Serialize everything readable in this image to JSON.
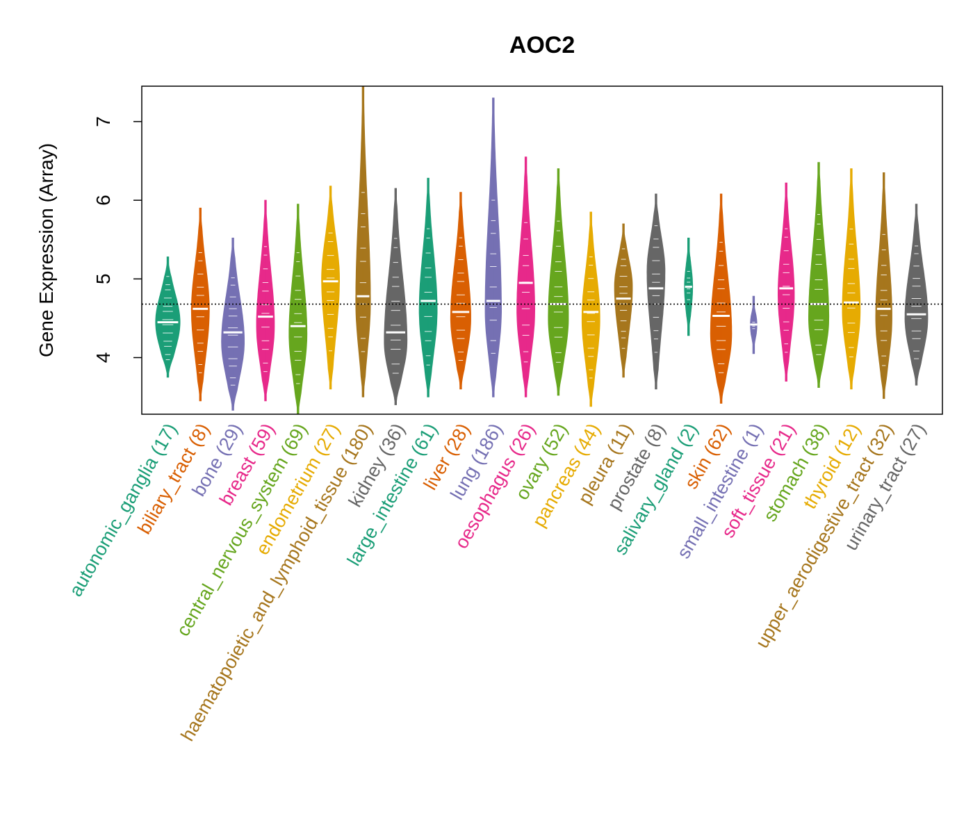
{
  "chart_data": {
    "type": "violin",
    "title": "AOC2",
    "xlabel": "",
    "ylabel": "Gene Expression (Array)",
    "ylim": [
      3.28,
      7.45
    ],
    "yticks": [
      4,
      5,
      6,
      7
    ],
    "reference_line": 4.68,
    "grid": false,
    "legend": "none",
    "categories": [
      {
        "label": "autonomic_ganglia (17)",
        "color": "#1B9E77",
        "median": 4.45,
        "min": 3.75,
        "max": 5.28,
        "mode": 4.45,
        "width": 0.75
      },
      {
        "label": "biliary_tract (8)",
        "color": "#D95F02",
        "median": 4.62,
        "min": 3.45,
        "max": 5.9,
        "mode": 4.6,
        "width": 0.55
      },
      {
        "label": "bone (29)",
        "color": "#7570B3",
        "median": 4.32,
        "min": 3.33,
        "max": 5.52,
        "mode": 4.2,
        "width": 0.7
      },
      {
        "label": "breast (59)",
        "color": "#E7298A",
        "median": 4.52,
        "min": 3.45,
        "max": 6.0,
        "mode": 4.4,
        "width": 0.55
      },
      {
        "label": "central_nervous_system (69)",
        "color": "#66A61E",
        "median": 4.4,
        "min": 3.28,
        "max": 5.95,
        "mode": 4.3,
        "width": 0.55
      },
      {
        "label": "endometrium (27)",
        "color": "#E6AB02",
        "median": 4.97,
        "min": 3.6,
        "max": 6.18,
        "mode": 5.0,
        "width": 0.55
      },
      {
        "label": "haematopoietic_and_lymphoid_tissue (180)",
        "color": "#A6761D",
        "median": 4.78,
        "min": 3.5,
        "max": 7.45,
        "mode": 4.7,
        "width": 0.45
      },
      {
        "label": "kidney (36)",
        "color": "#666666",
        "median": 4.32,
        "min": 3.4,
        "max": 6.15,
        "mode": 4.2,
        "width": 0.7
      },
      {
        "label": "large_intestine (61)",
        "color": "#1B9E77",
        "median": 4.72,
        "min": 3.5,
        "max": 6.28,
        "mode": 4.6,
        "width": 0.55
      },
      {
        "label": "liver (28)",
        "color": "#D95F02",
        "median": 4.58,
        "min": 3.6,
        "max": 6.1,
        "mode": 4.5,
        "width": 0.62
      },
      {
        "label": "lung (186)",
        "color": "#7570B3",
        "median": 4.72,
        "min": 3.5,
        "max": 7.3,
        "mode": 4.6,
        "width": 0.5
      },
      {
        "label": "oesophagus (26)",
        "color": "#E7298A",
        "median": 4.95,
        "min": 3.5,
        "max": 6.55,
        "mode": 4.6,
        "width": 0.55
      },
      {
        "label": "ovary (52)",
        "color": "#66A61E",
        "median": 4.68,
        "min": 3.52,
        "max": 6.4,
        "mode": 4.5,
        "width": 0.62
      },
      {
        "label": "pancreas (44)",
        "color": "#E6AB02",
        "median": 4.58,
        "min": 3.38,
        "max": 5.85,
        "mode": 4.5,
        "width": 0.55
      },
      {
        "label": "pleura (11)",
        "color": "#A6761D",
        "median": 4.75,
        "min": 3.75,
        "max": 5.7,
        "mode": 4.9,
        "width": 0.55
      },
      {
        "label": "prostate (8)",
        "color": "#666666",
        "median": 4.88,
        "min": 3.6,
        "max": 6.08,
        "mode": 5.1,
        "width": 0.55
      },
      {
        "label": "salivary_gland (2)",
        "color": "#1B9E77",
        "median": 4.9,
        "min": 4.28,
        "max": 5.52,
        "mode": 4.9,
        "width": 0.25
      },
      {
        "label": "skin (62)",
        "color": "#D95F02",
        "median": 4.53,
        "min": 3.42,
        "max": 6.08,
        "mode": 4.3,
        "width": 0.65
      },
      {
        "label": "small_intestine (1)",
        "color": "#7570B3",
        "median": 4.42,
        "min": 4.05,
        "max": 4.78,
        "mode": 4.42,
        "width": 0.2
      },
      {
        "label": "soft_tissue (21)",
        "color": "#E7298A",
        "median": 4.88,
        "min": 3.7,
        "max": 6.22,
        "mode": 4.8,
        "width": 0.5
      },
      {
        "label": "stomach (38)",
        "color": "#66A61E",
        "median": 4.68,
        "min": 3.62,
        "max": 6.48,
        "mode": 4.5,
        "width": 0.62
      },
      {
        "label": "thyroid (12)",
        "color": "#E6AB02",
        "median": 4.7,
        "min": 3.6,
        "max": 6.4,
        "mode": 4.6,
        "width": 0.55
      },
      {
        "label": "upper_aerodigestive_tract (32)",
        "color": "#A6761D",
        "median": 4.62,
        "min": 3.48,
        "max": 6.35,
        "mode": 4.5,
        "width": 0.5
      },
      {
        "label": "urinary_tract (27)",
        "color": "#666666",
        "median": 4.55,
        "min": 3.65,
        "max": 5.95,
        "mode": 4.5,
        "width": 0.7
      }
    ]
  }
}
